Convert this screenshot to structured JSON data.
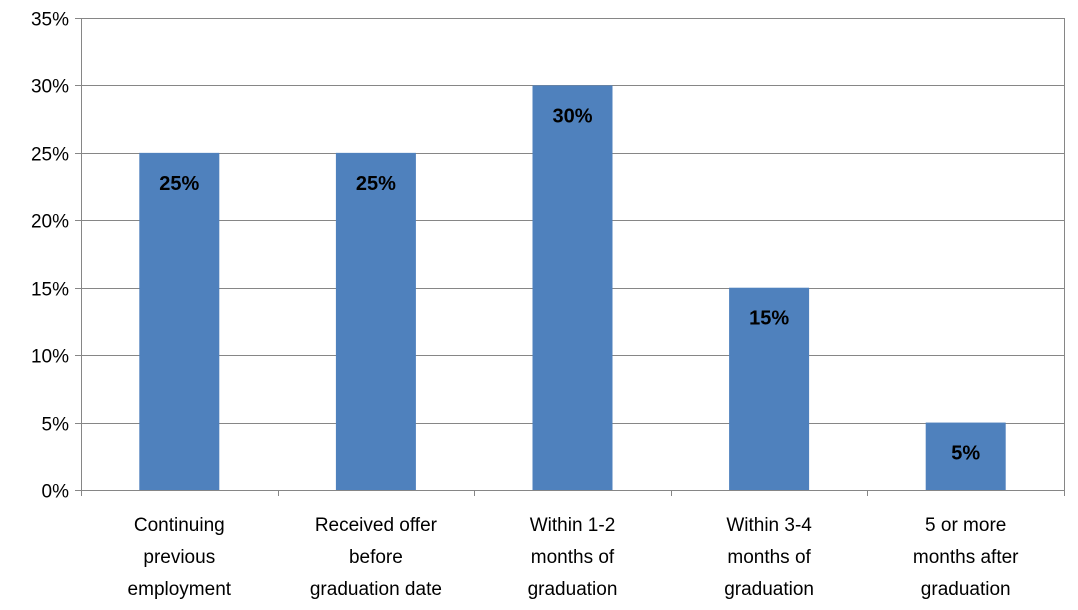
{
  "chart_data": {
    "type": "bar",
    "categories": [
      "Continuing previous employment",
      "Received offer before graduation date",
      "Within 1-2 months of graduation",
      "Within 3-4 months of graduation",
      "5 or more months after graduation"
    ],
    "category_lines": [
      [
        "Continuing",
        "previous",
        "employment"
      ],
      [
        "Received offer",
        "before",
        "graduation date"
      ],
      [
        "Within 1-2",
        "months of",
        "graduation"
      ],
      [
        "Within 3-4",
        "months of",
        "graduation"
      ],
      [
        "5 or more",
        "months after",
        "graduation"
      ]
    ],
    "values": [
      25,
      25,
      30,
      15,
      5
    ],
    "data_labels": [
      "25%",
      "25%",
      "30%",
      "15%",
      "5%"
    ],
    "title": "",
    "xlabel": "",
    "ylabel": "",
    "ylim": [
      0,
      35
    ],
    "yticks": [
      "0%",
      "5%",
      "10%",
      "15%",
      "20%",
      "25%",
      "30%",
      "35%"
    ],
    "grid": true,
    "legend": "none",
    "bar_color": "#4F81BD",
    "gridline_color": "#868686"
  }
}
